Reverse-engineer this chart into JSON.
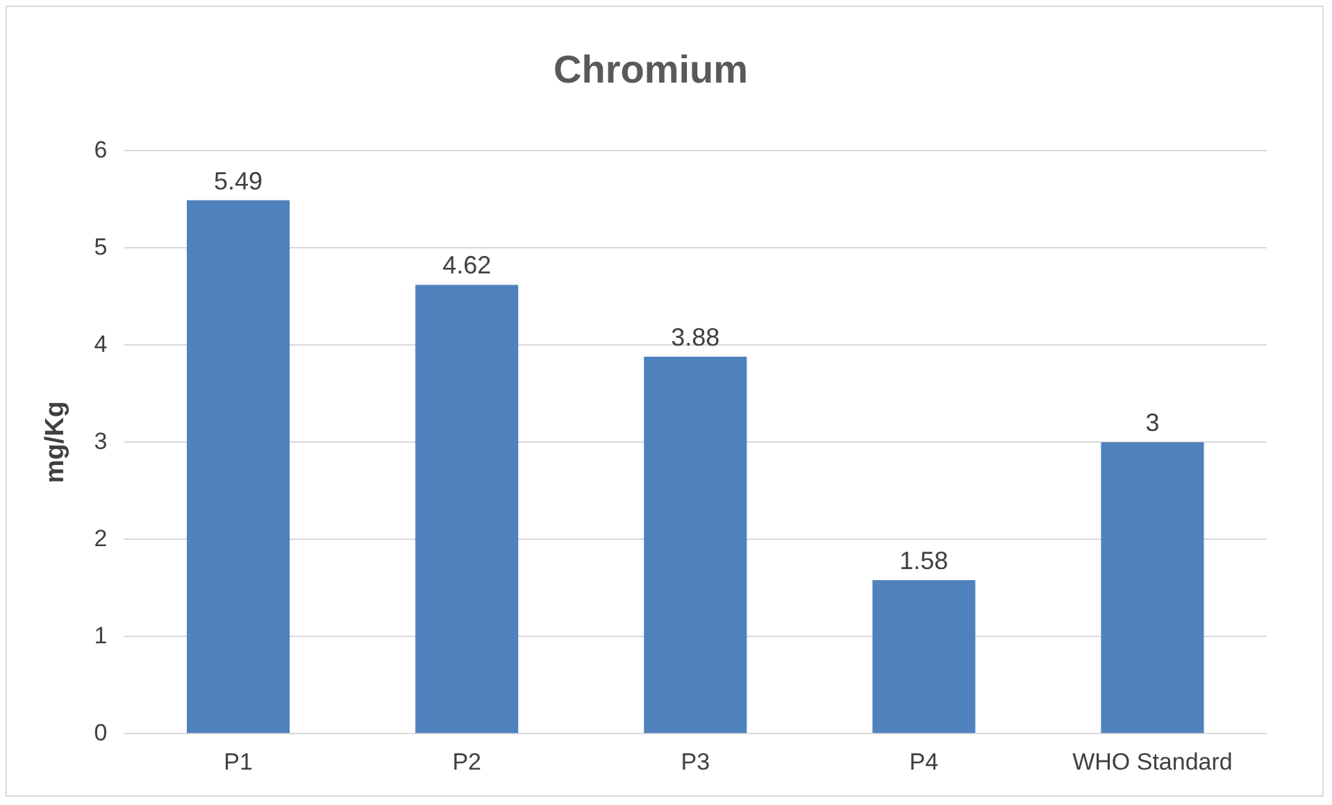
{
  "chart_data": {
    "type": "bar",
    "title": "Chromium",
    "ylabel": "mg/Kg",
    "categories": [
      "P1",
      "P2",
      "P3",
      "P4",
      "WHO Standard"
    ],
    "values": [
      5.49,
      4.62,
      3.88,
      1.58,
      3
    ],
    "color": "#4f81bd",
    "ylim": [
      0,
      6
    ],
    "yticks": [
      0,
      1,
      2,
      3,
      4,
      5,
      6
    ],
    "grid": "y",
    "data_labels": true
  }
}
